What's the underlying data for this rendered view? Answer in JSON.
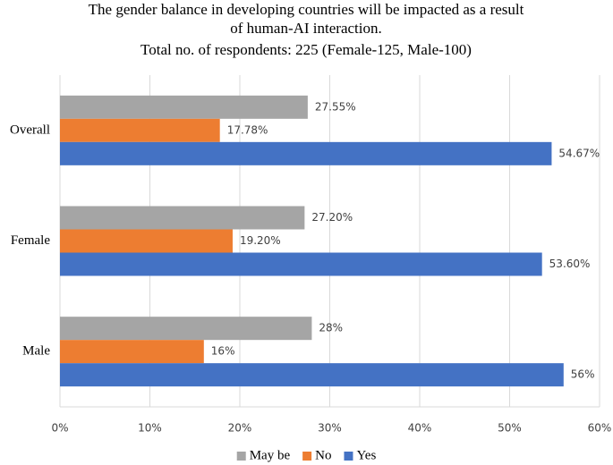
{
  "chart_data": {
    "type": "hbar",
    "title": [
      "The gender balance in developing countries will be impacted as a result",
      "of human-AI interaction."
    ],
    "subtitle": "Total no. of respondents: 225 (Female-125, Male-100)",
    "categories": [
      "Overall",
      "Female",
      "Male"
    ],
    "series": [
      {
        "name": "May be",
        "color": "#a5a5a5",
        "values": [
          27.55,
          27.2,
          28
        ],
        "value_labels": [
          "27.55%",
          "27.20%",
          "28%"
        ]
      },
      {
        "name": "No",
        "color": "#ed7d31",
        "values": [
          17.78,
          19.2,
          16
        ],
        "value_labels": [
          "17.78%",
          "19.20%",
          "16%"
        ]
      },
      {
        "name": "Yes",
        "color": "#4472c4",
        "values": [
          54.67,
          53.6,
          56
        ],
        "value_labels": [
          "54.67%",
          "53.60%",
          "56%"
        ]
      }
    ],
    "xlim": [
      0,
      60
    ],
    "xticks": [
      {
        "value": 0,
        "label": "0%"
      },
      {
        "value": 10,
        "label": "10%"
      },
      {
        "value": 20,
        "label": "20%"
      },
      {
        "value": 30,
        "label": "30%"
      },
      {
        "value": 40,
        "label": "40%"
      },
      {
        "value": 50,
        "label": "50%"
      },
      {
        "value": 60,
        "label": "60%"
      }
    ],
    "grid": true,
    "legend": "bottom"
  }
}
